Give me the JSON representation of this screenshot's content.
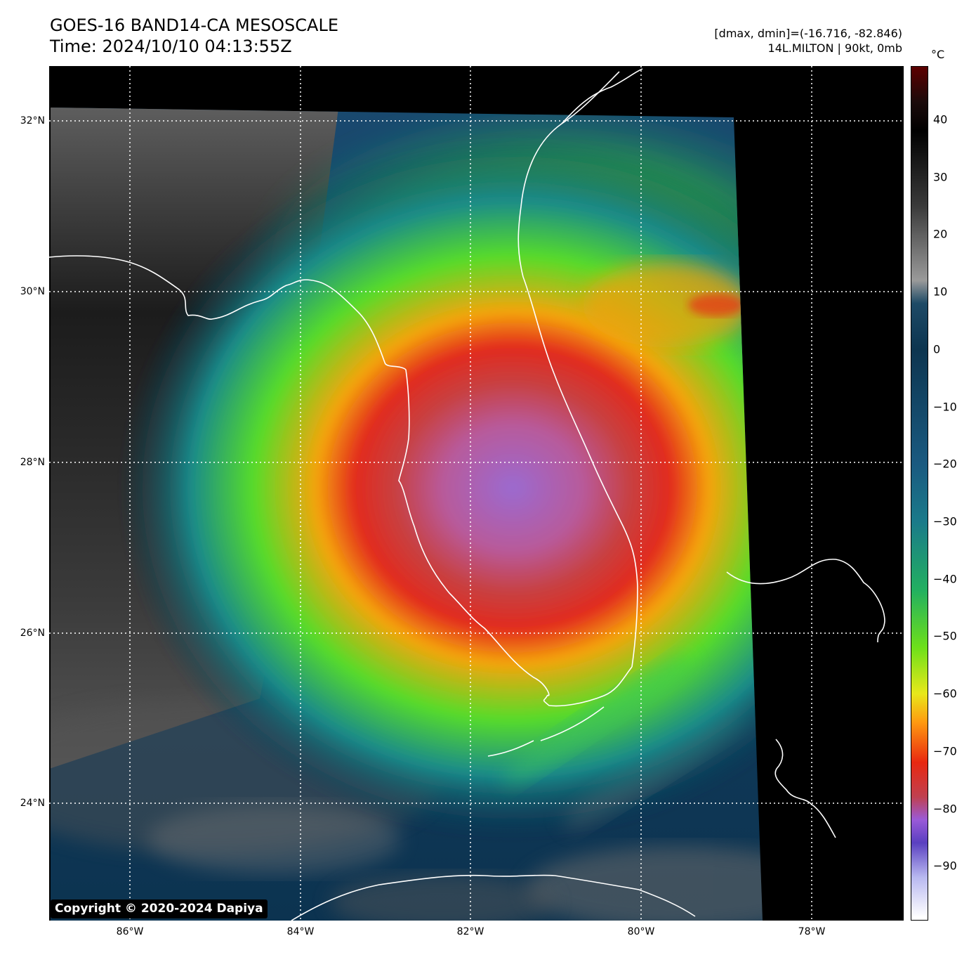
{
  "header": {
    "title_line1": "GOES-16 BAND14-CA MESOSCALE",
    "title_line2": "Time: 2024/10/10 04:13:55Z",
    "info_line1": "[dmax, dmin]=(-16.716, -82.846)",
    "info_line2": "14L.MILTON | 90kt, 0mb"
  },
  "axes": {
    "lat_labels": [
      "32°N",
      "30°N",
      "28°N",
      "26°N",
      "24°N"
    ],
    "lon_labels": [
      "86°W",
      "84°W",
      "82°W",
      "80°W",
      "78°W"
    ]
  },
  "colorbar": {
    "unit": "°C",
    "ticks": [
      "40",
      "30",
      "20",
      "10",
      "0",
      "−10",
      "−20",
      "−30",
      "−40",
      "−50",
      "−60",
      "−70",
      "−80",
      "−90"
    ],
    "stops": [
      {
        "t": 49,
        "color": "#5a0000"
      },
      {
        "t": 43,
        "color": "#1a0a0a"
      },
      {
        "t": 38,
        "color": "#000000"
      },
      {
        "t": 25,
        "color": "#3a3a3a"
      },
      {
        "t": 12,
        "color": "#9a9a9a"
      },
      {
        "t": 8,
        "color": "#1e4a66"
      },
      {
        "t": 0,
        "color": "#0d3550"
      },
      {
        "t": -20,
        "color": "#1a5a80"
      },
      {
        "t": -30,
        "color": "#1a7a8a"
      },
      {
        "t": -42,
        "color": "#22b060"
      },
      {
        "t": -52,
        "color": "#6ee01a"
      },
      {
        "t": -60,
        "color": "#e8e81a"
      },
      {
        "t": -65,
        "color": "#ff9a10"
      },
      {
        "t": -72,
        "color": "#e82810"
      },
      {
        "t": -78,
        "color": "#c04050"
      },
      {
        "t": -82,
        "color": "#9a5ad8"
      },
      {
        "t": -86,
        "color": "#5a40c0"
      },
      {
        "t": -92,
        "color": "#b8b8f0"
      },
      {
        "t": -99,
        "color": "#ffffff"
      }
    ]
  },
  "colors": {
    "eye_core": "#9b6ad0",
    "inner_ring": "#e22a1e",
    "outer_ring": "#f5a40c",
    "cloud_green": "#56dc2a",
    "coastline": "#ffffff",
    "gridline": "#ffffff",
    "no_data": "#000000"
  },
  "copyright": "Copyright © 2020-2024 Dapiya"
}
